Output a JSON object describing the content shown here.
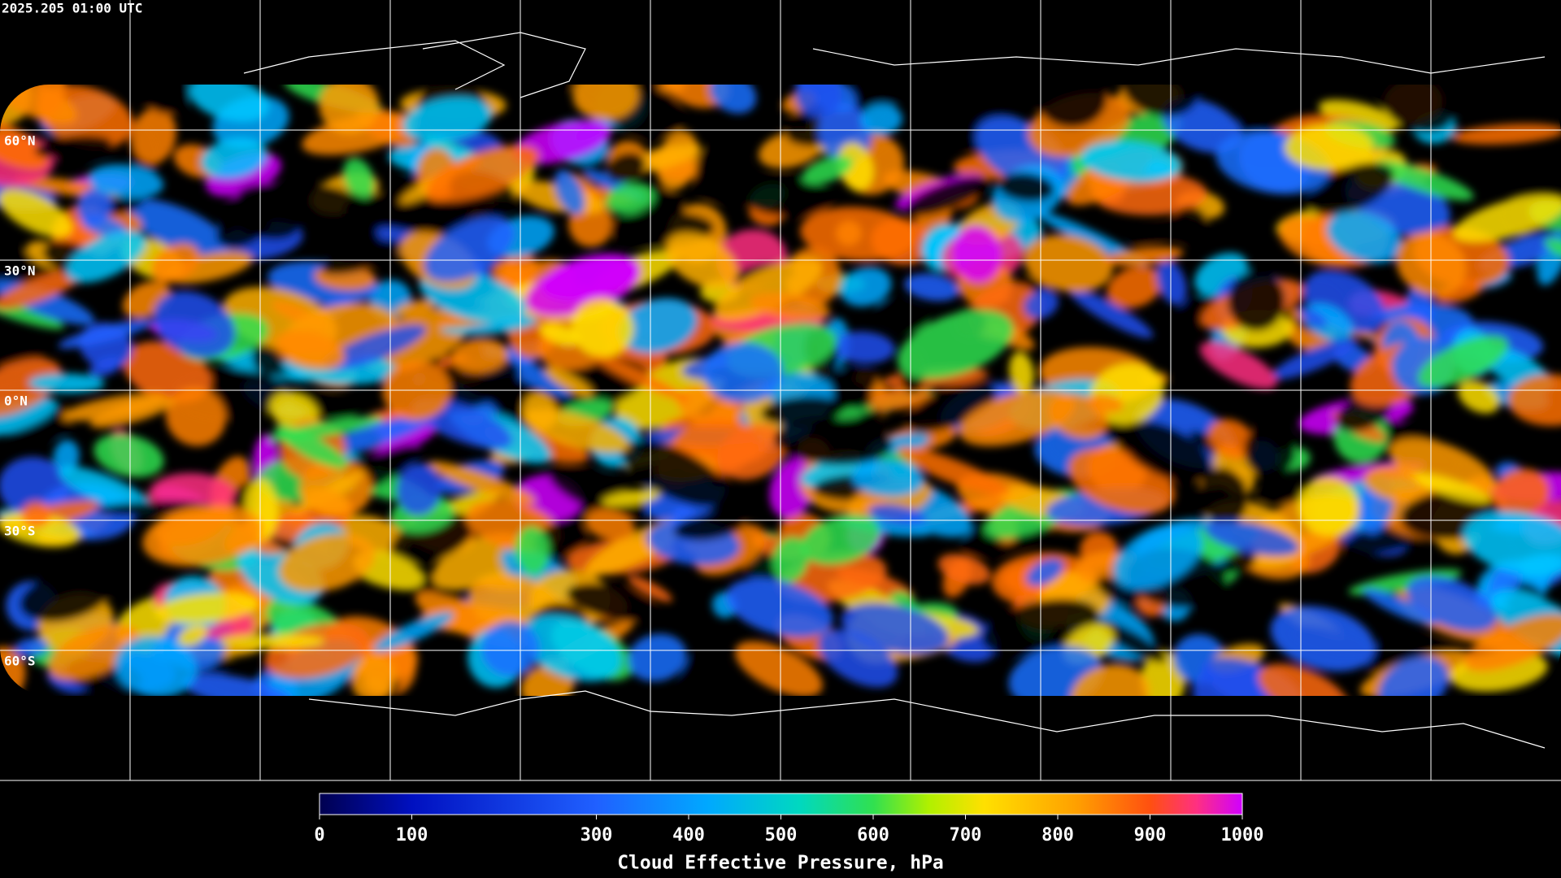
{
  "header": {
    "timestamp": "2025.205 01:00 UTC"
  },
  "map": {
    "lat_labels": [
      "60°N",
      "30°N",
      "0°N",
      "30°S",
      "60°S"
    ]
  },
  "colorbar": {
    "title": "Cloud Effective Pressure, hPa",
    "range": [
      0,
      1000
    ],
    "ticks": [
      0,
      100,
      300,
      400,
      500,
      600,
      700,
      800,
      900,
      1000
    ]
  }
}
